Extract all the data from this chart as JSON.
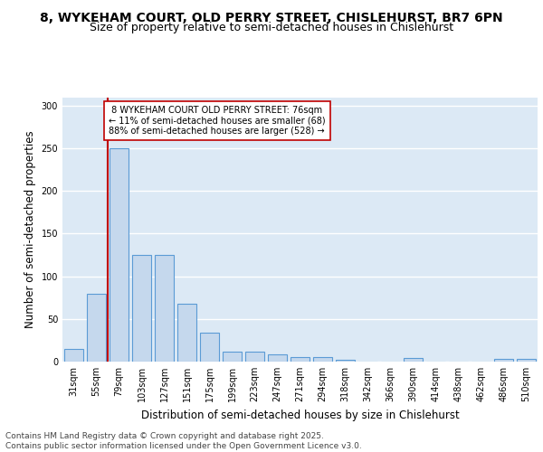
{
  "title_line1": "8, WYKEHAM COURT, OLD PERRY STREET, CHISLEHURST, BR7 6PN",
  "title_line2": "Size of property relative to semi-detached houses in Chislehurst",
  "xlabel": "Distribution of semi-detached houses by size in Chislehurst",
  "ylabel": "Number of semi-detached properties",
  "categories": [
    "31sqm",
    "55sqm",
    "79sqm",
    "103sqm",
    "127sqm",
    "151sqm",
    "175sqm",
    "199sqm",
    "223sqm",
    "247sqm",
    "271sqm",
    "294sqm",
    "318sqm",
    "342sqm",
    "366sqm",
    "390sqm",
    "414sqm",
    "438sqm",
    "462sqm",
    "486sqm",
    "510sqm"
  ],
  "values": [
    15,
    80,
    250,
    125,
    125,
    68,
    34,
    12,
    12,
    9,
    5,
    5,
    2,
    0,
    0,
    4,
    0,
    0,
    0,
    3,
    3
  ],
  "bar_color": "#c5d8ed",
  "bar_edge_color": "#5b9bd5",
  "highlight_index": 2,
  "highlight_color": "#c00000",
  "annotation_line1": " 8 WYKEHAM COURT OLD PERRY STREET: 76sqm",
  "annotation_line2": "← 11% of semi-detached houses are smaller (68)",
  "annotation_line3": "88% of semi-detached houses are larger (528) →",
  "annotation_box_color": "#ffffff",
  "annotation_border_color": "#c00000",
  "ylim": [
    0,
    310
  ],
  "yticks": [
    0,
    50,
    100,
    150,
    200,
    250,
    300
  ],
  "background_color": "#dce9f5",
  "grid_color": "#ffffff",
  "footer_text": "Contains HM Land Registry data © Crown copyright and database right 2025.\nContains public sector information licensed under the Open Government Licence v3.0.",
  "title_fontsize": 10,
  "subtitle_fontsize": 9,
  "axis_label_fontsize": 8.5,
  "tick_fontsize": 7,
  "annotation_fontsize": 7,
  "footer_fontsize": 6.5
}
